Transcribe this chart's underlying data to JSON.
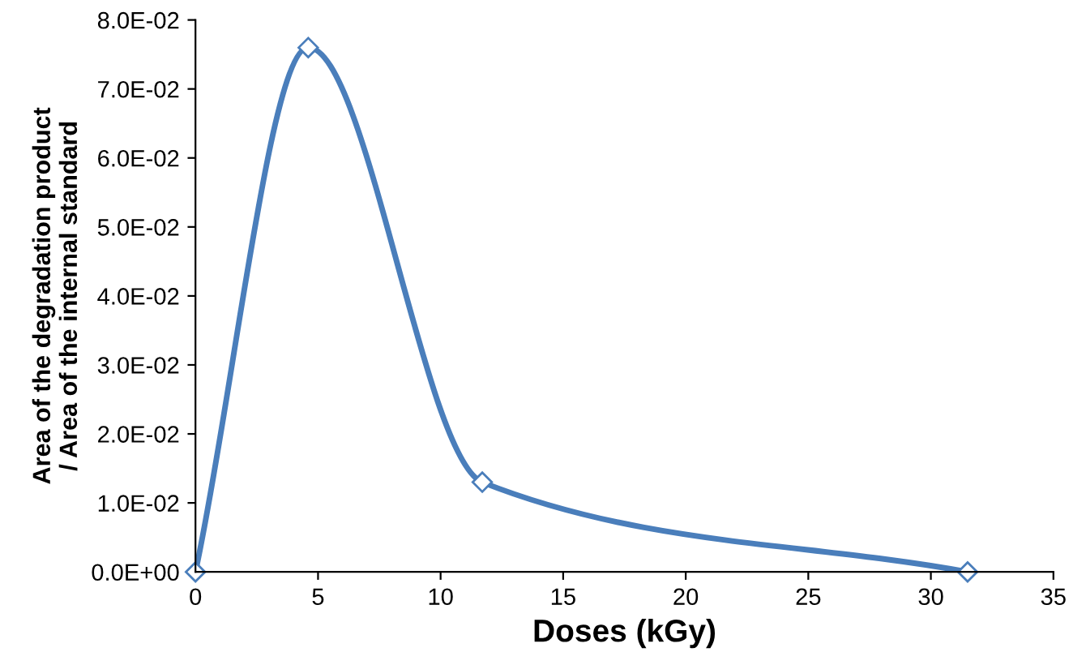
{
  "chart_data": {
    "type": "line",
    "xlabel": "Doses (kGy)",
    "ylabel": "Area of the degradation product\n/ Area of the internal standard",
    "series": [
      {
        "color": "#4a7ebb",
        "x": [
          0,
          4.6,
          11.7,
          31.5
        ],
        "values": [
          0.0,
          0.076,
          0.013,
          0.0
        ]
      }
    ],
    "marker": "diamond",
    "line_style": "solid",
    "grid": false,
    "xlim": [
      0,
      35
    ],
    "xticks": [
      0,
      5,
      10,
      15,
      20,
      25,
      30,
      35
    ],
    "ylim": [
      0,
      0.08
    ],
    "yticks": [
      {
        "value": 0,
        "label": "0.0E+00"
      },
      {
        "value": 0.01,
        "label": "1.0E-02"
      },
      {
        "value": 0.02,
        "label": "2.0E-02"
      },
      {
        "value": 0.03,
        "label": "3.0E-02"
      },
      {
        "value": 0.04,
        "label": "4.0E-02"
      },
      {
        "value": 0.05,
        "label": "5.0E-02"
      },
      {
        "value": 0.06,
        "label": "6.0E-02"
      },
      {
        "value": 0.07,
        "label": "7.0E-02"
      },
      {
        "value": 0.08,
        "label": "8.0E-02"
      }
    ]
  }
}
